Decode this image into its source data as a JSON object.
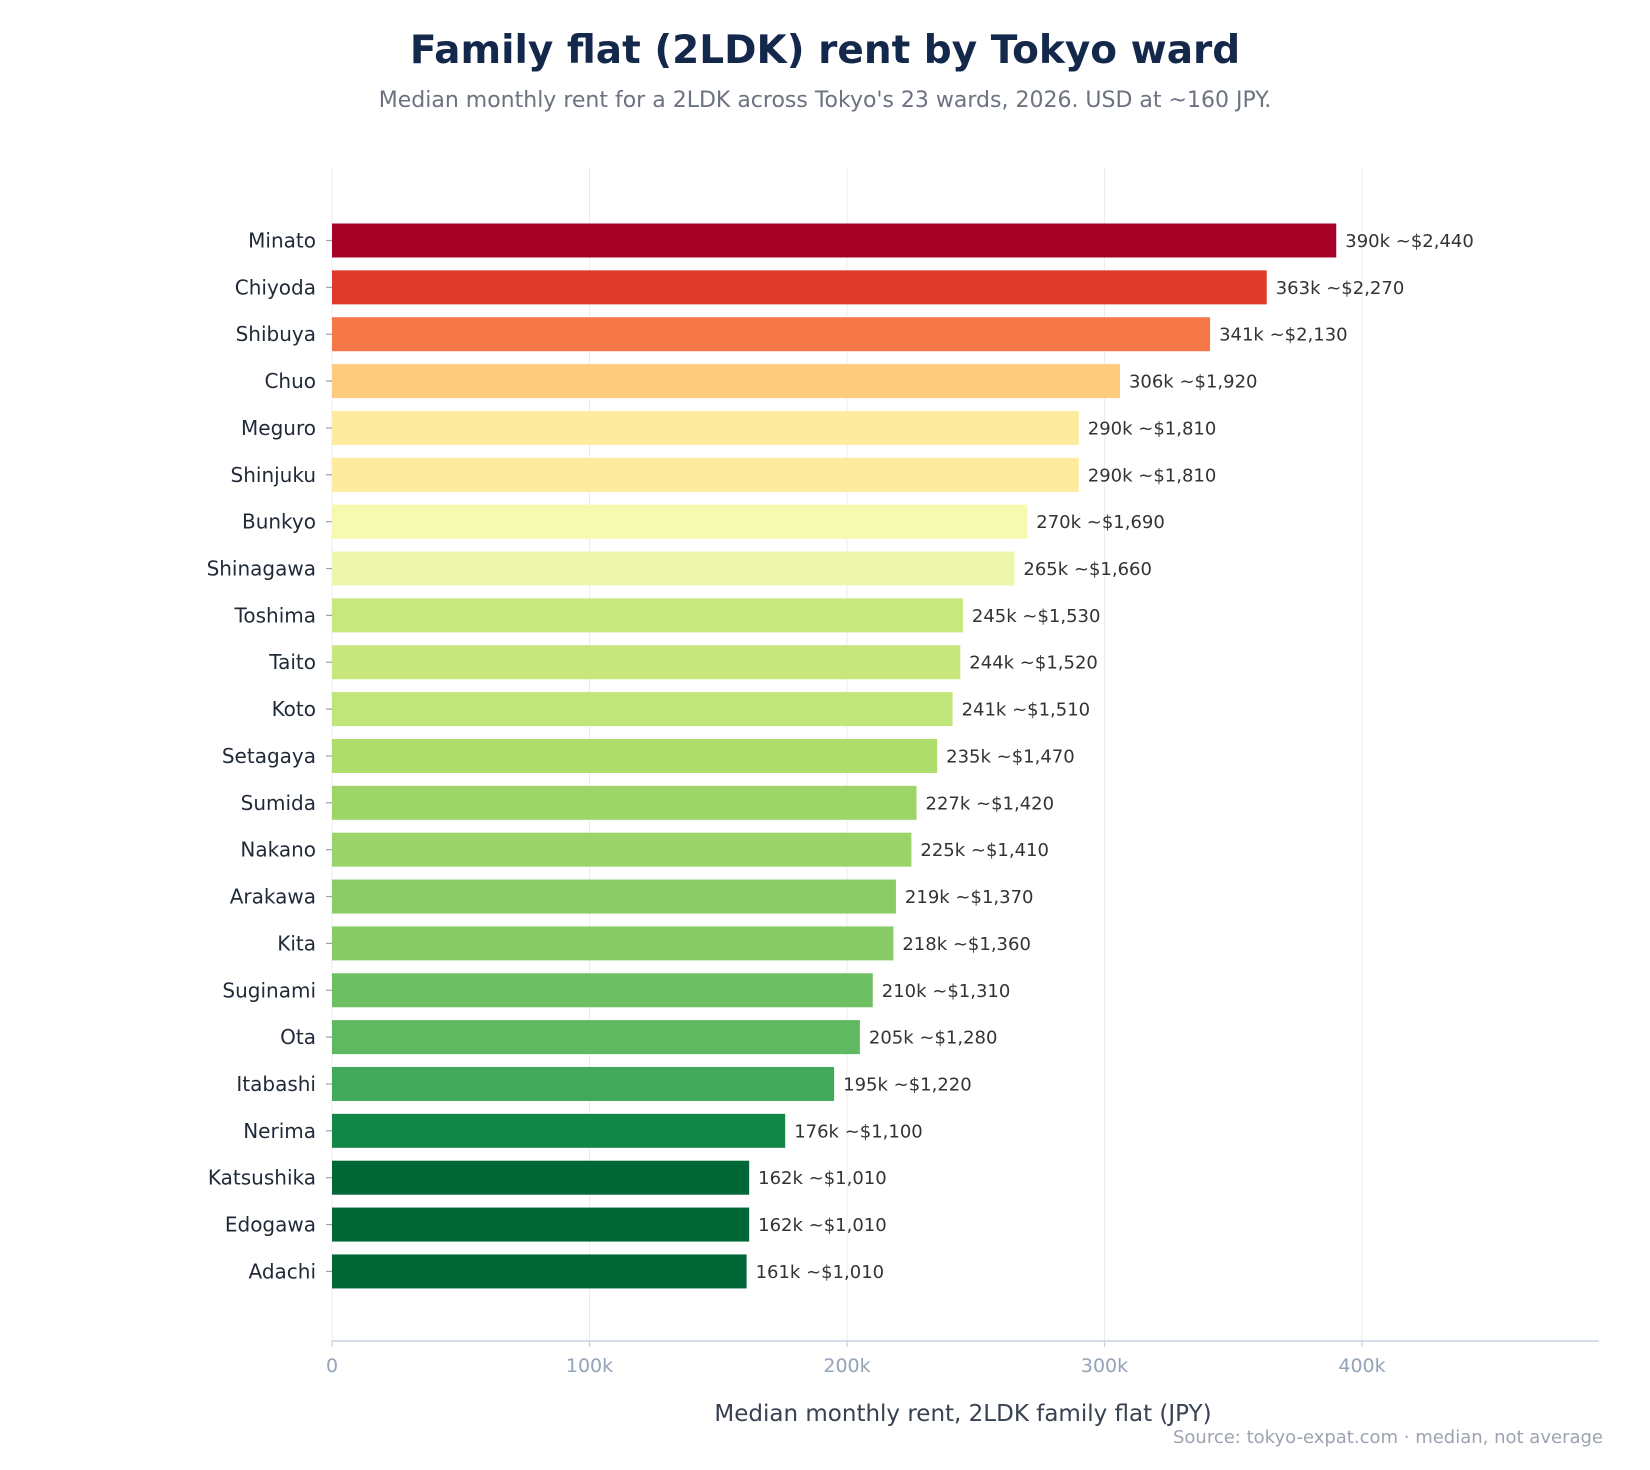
{
  "title": "Family flat (2LDK) rent by Tokyo ward",
  "subtitle": "Median monthly rent for a 2LDK across Tokyo's 23 wards, 2026. USD at ~160 JPY.",
  "source": "Source: tokyo-expat.com  ·  median, not average",
  "chart_data": {
    "type": "bar",
    "orientation": "horizontal",
    "xlabel": "Median monthly rent, 2LDK family flat (JPY)",
    "ylabel": "",
    "xlim": [
      0,
      492000
    ],
    "xticks": [
      0,
      100000,
      200000,
      300000,
      400000
    ],
    "xtick_labels": [
      "0",
      "100k",
      "200k",
      "300k",
      "400k"
    ],
    "grid": "vertical",
    "categories": [
      "Minato",
      "Chiyoda",
      "Shibuya",
      "Chuo",
      "Meguro",
      "Shinjuku",
      "Bunkyo",
      "Shinagawa",
      "Toshima",
      "Taito",
      "Koto",
      "Setagaya",
      "Sumida",
      "Nakano",
      "Arakawa",
      "Kita",
      "Suginami",
      "Ota",
      "Itabashi",
      "Nerima",
      "Katsushika",
      "Edogawa",
      "Adachi"
    ],
    "values": [
      390000,
      363000,
      341000,
      306000,
      290000,
      290000,
      270000,
      265000,
      245000,
      244000,
      241000,
      235000,
      227000,
      225000,
      219000,
      218000,
      210000,
      205000,
      195000,
      176000,
      162000,
      162000,
      161000
    ],
    "value_labels": [
      "390k  ~$2,440",
      "363k  ~$2,270",
      "341k  ~$2,130",
      "306k  ~$1,920",
      "290k  ~$1,810",
      "290k  ~$1,810",
      "270k  ~$1,690",
      "265k  ~$1,660",
      "245k  ~$1,530",
      "244k  ~$1,520",
      "241k  ~$1,510",
      "235k  ~$1,470",
      "227k  ~$1,420",
      "225k  ~$1,410",
      "219k  ~$1,370",
      "218k  ~$1,360",
      "210k  ~$1,310",
      "205k  ~$1,280",
      "195k  ~$1,220",
      "176k  ~$1,100",
      "162k  ~$1,010",
      "162k  ~$1,010",
      "161k  ~$1,010"
    ],
    "colors": [
      "#a50026",
      "#de3b2c",
      "#f67849",
      "#fdcb7d",
      "#feeb9e",
      "#feeb9e",
      "#f5fab0",
      "#ecf7ab",
      "#c8e77e",
      "#c7e77d",
      "#c0e57a",
      "#b0dc6c",
      "#9dd569",
      "#9bd46a",
      "#8bcc67",
      "#89cb66",
      "#6cbf63",
      "#5fb960",
      "#41aa5a",
      "#128848",
      "#006837",
      "#006837",
      "#006837"
    ]
  }
}
